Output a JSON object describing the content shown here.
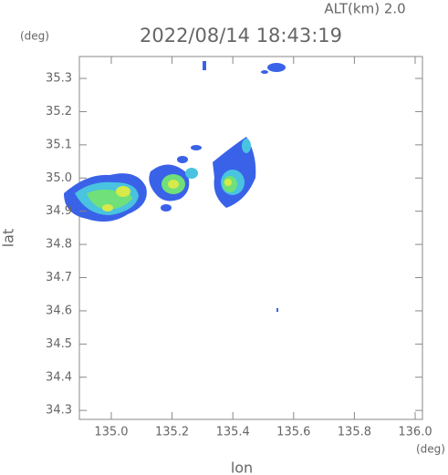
{
  "chart_data": {
    "type": "radar-map",
    "title": "2022/08/14 18:43:19",
    "annotation": "ALT(km) 2.0",
    "x_label": "lon",
    "y_label": "lat",
    "x_unit": "(deg)",
    "y_unit": "(deg)",
    "xlim": [
      134.895,
      136.024
    ],
    "ylim": [
      34.273,
      35.366
    ],
    "xticks": [
      {
        "value": 135.0,
        "label": "135.0"
      },
      135.2,
      135.4,
      135.6,
      135.8,
      {
        "value": 136.0,
        "label": "136.0"
      }
    ],
    "yticks": [
      35.3,
      35.2,
      35.1,
      {
        "value": 35.0,
        "label": "35.0"
      },
      34.9,
      34.8,
      34.7,
      34.6,
      34.5,
      34.4,
      34.3
    ]
  }
}
